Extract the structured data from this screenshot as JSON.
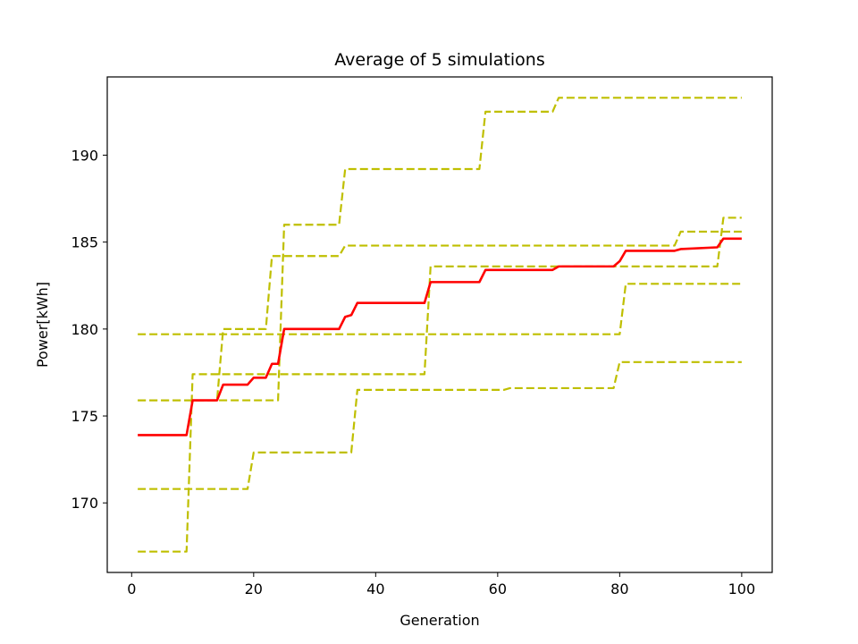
{
  "chart_data": {
    "type": "line",
    "title": "Average of 5 simulations",
    "xlabel": "Generation",
    "ylabel": "Power[kWh]",
    "xlim": [
      -4,
      105
    ],
    "ylim": [
      166,
      194.5
    ],
    "xticks": [
      0,
      20,
      40,
      60,
      80,
      100
    ],
    "yticks": [
      170,
      175,
      180,
      185,
      190
    ],
    "grid": false,
    "legend": "none",
    "colors": {
      "simulation": "#bfbf00",
      "average": "#ff0000"
    },
    "series": [
      {
        "style": "dashed",
        "color": "#bfbf00",
        "points": [
          [
            1,
            179.7
          ],
          [
            80,
            179.7
          ],
          [
            81,
            182.6
          ],
          [
            100,
            182.6
          ]
        ]
      },
      {
        "style": "dashed",
        "color": "#bfbf00",
        "points": [
          [
            1,
            175.9
          ],
          [
            14,
            175.9
          ],
          [
            15,
            180.0
          ],
          [
            22,
            180.0
          ],
          [
            23,
            184.2
          ],
          [
            34,
            184.2
          ],
          [
            35,
            184.8
          ],
          [
            89,
            184.8
          ],
          [
            90,
            185.6
          ],
          [
            100,
            185.6
          ]
        ]
      },
      {
        "style": "dashed",
        "color": "#bfbf00",
        "points": [
          [
            1,
            175.9
          ],
          [
            24,
            175.9
          ],
          [
            25,
            186.0
          ],
          [
            34,
            186.0
          ],
          [
            35,
            189.2
          ],
          [
            57,
            189.2
          ],
          [
            58,
            192.5
          ],
          [
            69,
            192.5
          ],
          [
            70,
            193.3
          ],
          [
            100,
            193.3
          ]
        ]
      },
      {
        "style": "dashed",
        "color": "#bfbf00",
        "points": [
          [
            1,
            170.8
          ],
          [
            19,
            170.8
          ],
          [
            20,
            172.9
          ],
          [
            36,
            172.9
          ],
          [
            37,
            176.5
          ],
          [
            61,
            176.5
          ],
          [
            62,
            176.6
          ],
          [
            79,
            176.6
          ],
          [
            80,
            178.1
          ],
          [
            100,
            178.1
          ]
        ]
      },
      {
        "style": "dashed",
        "color": "#bfbf00",
        "points": [
          [
            1,
            167.2
          ],
          [
            9,
            167.2
          ],
          [
            10,
            177.4
          ],
          [
            48,
            177.4
          ],
          [
            49,
            183.6
          ],
          [
            96,
            183.6
          ],
          [
            97,
            186.4
          ],
          [
            100,
            186.4
          ]
        ]
      },
      {
        "style": "solid",
        "color": "#ff0000",
        "points": [
          [
            1,
            173.9
          ],
          [
            9,
            173.9
          ],
          [
            10,
            175.9
          ],
          [
            14,
            175.9
          ],
          [
            15,
            176.8
          ],
          [
            19,
            176.8
          ],
          [
            20,
            177.2
          ],
          [
            22,
            177.2
          ],
          [
            23,
            178.0
          ],
          [
            24,
            178.0
          ],
          [
            25,
            180.0
          ],
          [
            34,
            180.0
          ],
          [
            35,
            180.7
          ],
          [
            36,
            180.8
          ],
          [
            37,
            181.5
          ],
          [
            48,
            181.5
          ],
          [
            49,
            182.7
          ],
          [
            57,
            182.7
          ],
          [
            58,
            183.4
          ],
          [
            61,
            183.4
          ],
          [
            62,
            183.4
          ],
          [
            69,
            183.4
          ],
          [
            70,
            183.6
          ],
          [
            79,
            183.6
          ],
          [
            80,
            183.9
          ],
          [
            81,
            184.5
          ],
          [
            89,
            184.5
          ],
          [
            90,
            184.6
          ],
          [
            96,
            184.7
          ],
          [
            97,
            185.2
          ],
          [
            100,
            185.2
          ]
        ]
      }
    ]
  }
}
